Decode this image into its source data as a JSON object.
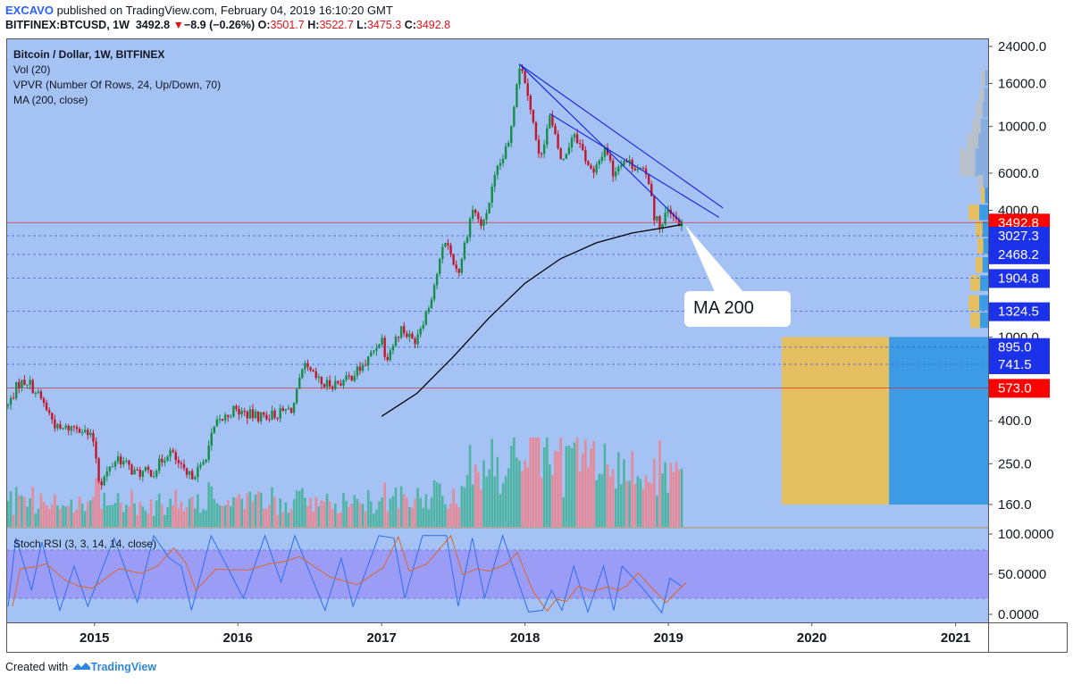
{
  "header": {
    "author": "EXCAVO",
    "published": "published on TradingView.com, February 04, 2019 16:10:20 GMT",
    "symbol": "BITFINEX:BTCUSD, 1W",
    "price": "3492.8",
    "arrow": "▼",
    "change": "−8.9 (−0.26%)",
    "o_label": "O:",
    "o": "3501.7",
    "h_label": "H:",
    "h": "3522.7",
    "l_label": "L:",
    "l": "3475.3",
    "c_label": "C:",
    "c": "3492.8"
  },
  "legend": {
    "title": "Bitcoin / Dollar, 1W, BITFINEX",
    "vol": "Vol (20)",
    "vpvr": "VPVR (Number Of Rows, 24, Up/Down, 70)",
    "ma": "MA (200, close)",
    "rsi": "Stoch RSI (3, 3, 14, 14, close)"
  },
  "callout": "MA 200",
  "footer": {
    "prefix": "Created with",
    "brand": "TradingView"
  },
  "colors": {
    "background": "#a4c2f4",
    "rsi_band": "#9b9cf6",
    "up": "#168d48",
    "down": "#c2182c",
    "vol_up": "#4fb4a4",
    "vol_down": "#e68a99",
    "vpvr_up": "#e3bf62",
    "vpvr_down": "#3d9be6",
    "level_line": "#3355dd",
    "red_line": "#dd2222",
    "label_blue": "#1b31ea",
    "label_red": "#ff0000"
  },
  "chart_data": [
    {
      "type": "candlestick",
      "title": "Bitcoin / Dollar, 1W, BITFINEX",
      "y_scale": "log",
      "y_ticks": [
        "24000.0",
        "16000.0",
        "10000.0",
        "6000.0",
        "4000.0",
        "1000.0",
        "400.0",
        "250.0",
        "160.0"
      ],
      "x_ticks": [
        "2015",
        "2016",
        "2017",
        "2018",
        "2019",
        "2020",
        "2021"
      ],
      "price_path": [
        [
          "2014-05-26",
          470
        ],
        [
          "2014-06-20",
          600
        ],
        [
          "2014-07-15",
          620
        ],
        [
          "2014-08-20",
          500
        ],
        [
          "2014-10-01",
          360
        ],
        [
          "2014-11-20",
          380
        ],
        [
          "2014-12-31",
          320
        ],
        [
          "2015-01-14",
          200
        ],
        [
          "2015-03-01",
          270
        ],
        [
          "2015-04-15",
          225
        ],
        [
          "2015-06-01",
          230
        ],
        [
          "2015-07-10",
          290
        ],
        [
          "2015-08-25",
          215
        ],
        [
          "2015-10-01",
          240
        ],
        [
          "2015-11-05",
          380
        ],
        [
          "2015-12-20",
          450
        ],
        [
          "2016-02-15",
          420
        ],
        [
          "2016-04-10",
          430
        ],
        [
          "2016-05-20",
          460
        ],
        [
          "2016-06-17",
          720
        ],
        [
          "2016-08-05",
          590
        ],
        [
          "2016-10-01",
          620
        ],
        [
          "2016-11-20",
          740
        ],
        [
          "2017-01-01",
          1000
        ],
        [
          "2017-01-12",
          800
        ],
        [
          "2017-02-20",
          1100
        ],
        [
          "2017-03-24",
          950
        ],
        [
          "2017-05-01",
          1400
        ],
        [
          "2017-06-12",
          2900
        ],
        [
          "2017-07-15",
          2000
        ],
        [
          "2017-08-20",
          4100
        ],
        [
          "2017-09-15",
          3300
        ],
        [
          "2017-10-20",
          6000
        ],
        [
          "2017-11-20",
          8200
        ],
        [
          "2017-12-17",
          19800
        ],
        [
          "2018-01-05",
          16000
        ],
        [
          "2018-02-06",
          7000
        ],
        [
          "2018-03-05",
          11000
        ],
        [
          "2018-04-06",
          6600
        ],
        [
          "2018-05-05",
          9600
        ],
        [
          "2018-06-24",
          5800
        ],
        [
          "2018-07-25",
          8200
        ],
        [
          "2018-08-13",
          6000
        ],
        [
          "2018-09-05",
          7000
        ],
        [
          "2018-10-15",
          6400
        ],
        [
          "2018-11-15",
          5500
        ],
        [
          "2018-11-25",
          3800
        ],
        [
          "2018-12-15",
          3300
        ],
        [
          "2018-12-28",
          4000
        ],
        [
          "2019-01-15",
          3600
        ],
        [
          "2019-02-04",
          3492.8
        ]
      ],
      "ma_200": [
        [
          "2017-01-01",
          420
        ],
        [
          "2017-04-01",
          540
        ],
        [
          "2017-07-01",
          800
        ],
        [
          "2017-10-01",
          1230
        ],
        [
          "2018-01-01",
          1800
        ],
        [
          "2018-04-01",
          2350
        ],
        [
          "2018-07-01",
          2800
        ],
        [
          "2018-10-01",
          3120
        ],
        [
          "2019-01-01",
          3330
        ],
        [
          "2019-02-04",
          3420
        ]
      ],
      "trend_lines": [
        [
          [
            "2017-12-17",
            19800
          ],
          [
            "2019-05-20",
            4100
          ]
        ],
        [
          [
            "2018-03-05",
            11500
          ],
          [
            "2019-05-10",
            3700
          ]
        ],
        [
          [
            "2017-12-17",
            19800
          ],
          [
            "2019-02-04",
            3492.8
          ]
        ]
      ],
      "horizontal_levels": [
        3492.8,
        3027.3,
        2468.2,
        1904.8,
        1324.5,
        895.0,
        741.5,
        573.0
      ],
      "price_labels": [
        {
          "value": "3492.8",
          "color": "red"
        },
        {
          "value": "3027.3",
          "color": "blue"
        },
        {
          "value": "2468.2",
          "color": "blue"
        },
        {
          "value": "1904.8",
          "color": "blue"
        },
        {
          "value": "1324.5",
          "color": "blue"
        },
        {
          "value": "895.0",
          "color": "blue"
        },
        {
          "value": "741.5",
          "color": "blue"
        },
        {
          "value": "573.0",
          "color": "red"
        }
      ],
      "vpvr_highlight": {
        "from": 160,
        "to": 1000,
        "up_share": 0.52
      }
    },
    {
      "type": "line",
      "title": "Stoch RSI (3, 3, 14, 14, close)",
      "y_ticks": [
        "100.0000",
        "50.0000",
        "0.0000"
      ],
      "band": [
        20,
        80
      ],
      "k_pivots": [
        [
          "2014-05-26",
          10
        ],
        [
          "2014-06-15",
          95
        ],
        [
          "2014-07-25",
          30
        ],
        [
          "2014-08-20",
          90
        ],
        [
          "2014-10-05",
          5
        ],
        [
          "2014-11-10",
          60
        ],
        [
          "2014-12-15",
          10
        ],
        [
          "2015-02-20",
          95
        ],
        [
          "2015-04-20",
          15
        ],
        [
          "2015-06-01",
          98
        ],
        [
          "2015-07-10",
          70
        ],
        [
          "2015-08-10",
          60
        ],
        [
          "2015-09-05",
          5
        ],
        [
          "2015-10-25",
          98
        ],
        [
          "2016-01-15",
          20
        ],
        [
          "2016-03-10",
          98
        ],
        [
          "2016-04-20",
          40
        ],
        [
          "2016-05-25",
          98
        ],
        [
          "2016-08-10",
          5
        ],
        [
          "2016-09-20",
          70
        ],
        [
          "2016-10-20",
          10
        ],
        [
          "2016-12-25",
          98
        ],
        [
          "2017-02-01",
          95
        ],
        [
          "2017-03-01",
          20
        ],
        [
          "2017-04-15",
          98
        ],
        [
          "2017-06-15",
          98
        ],
        [
          "2017-07-15",
          10
        ],
        [
          "2017-08-20",
          95
        ],
        [
          "2017-09-20",
          20
        ],
        [
          "2017-11-05",
          98
        ],
        [
          "2017-12-01",
          60
        ],
        [
          "2018-01-10",
          3
        ],
        [
          "2018-02-15",
          5
        ],
        [
          "2018-03-10",
          30
        ],
        [
          "2018-04-05",
          5
        ],
        [
          "2018-05-05",
          60
        ],
        [
          "2018-06-10",
          3
        ],
        [
          "2018-07-20",
          60
        ],
        [
          "2018-08-15",
          5
        ],
        [
          "2018-09-05",
          60
        ],
        [
          "2018-10-05",
          45
        ],
        [
          "2018-11-01",
          30
        ],
        [
          "2018-12-15",
          2
        ],
        [
          "2019-01-05",
          45
        ],
        [
          "2019-02-04",
          35
        ]
      ]
    }
  ]
}
